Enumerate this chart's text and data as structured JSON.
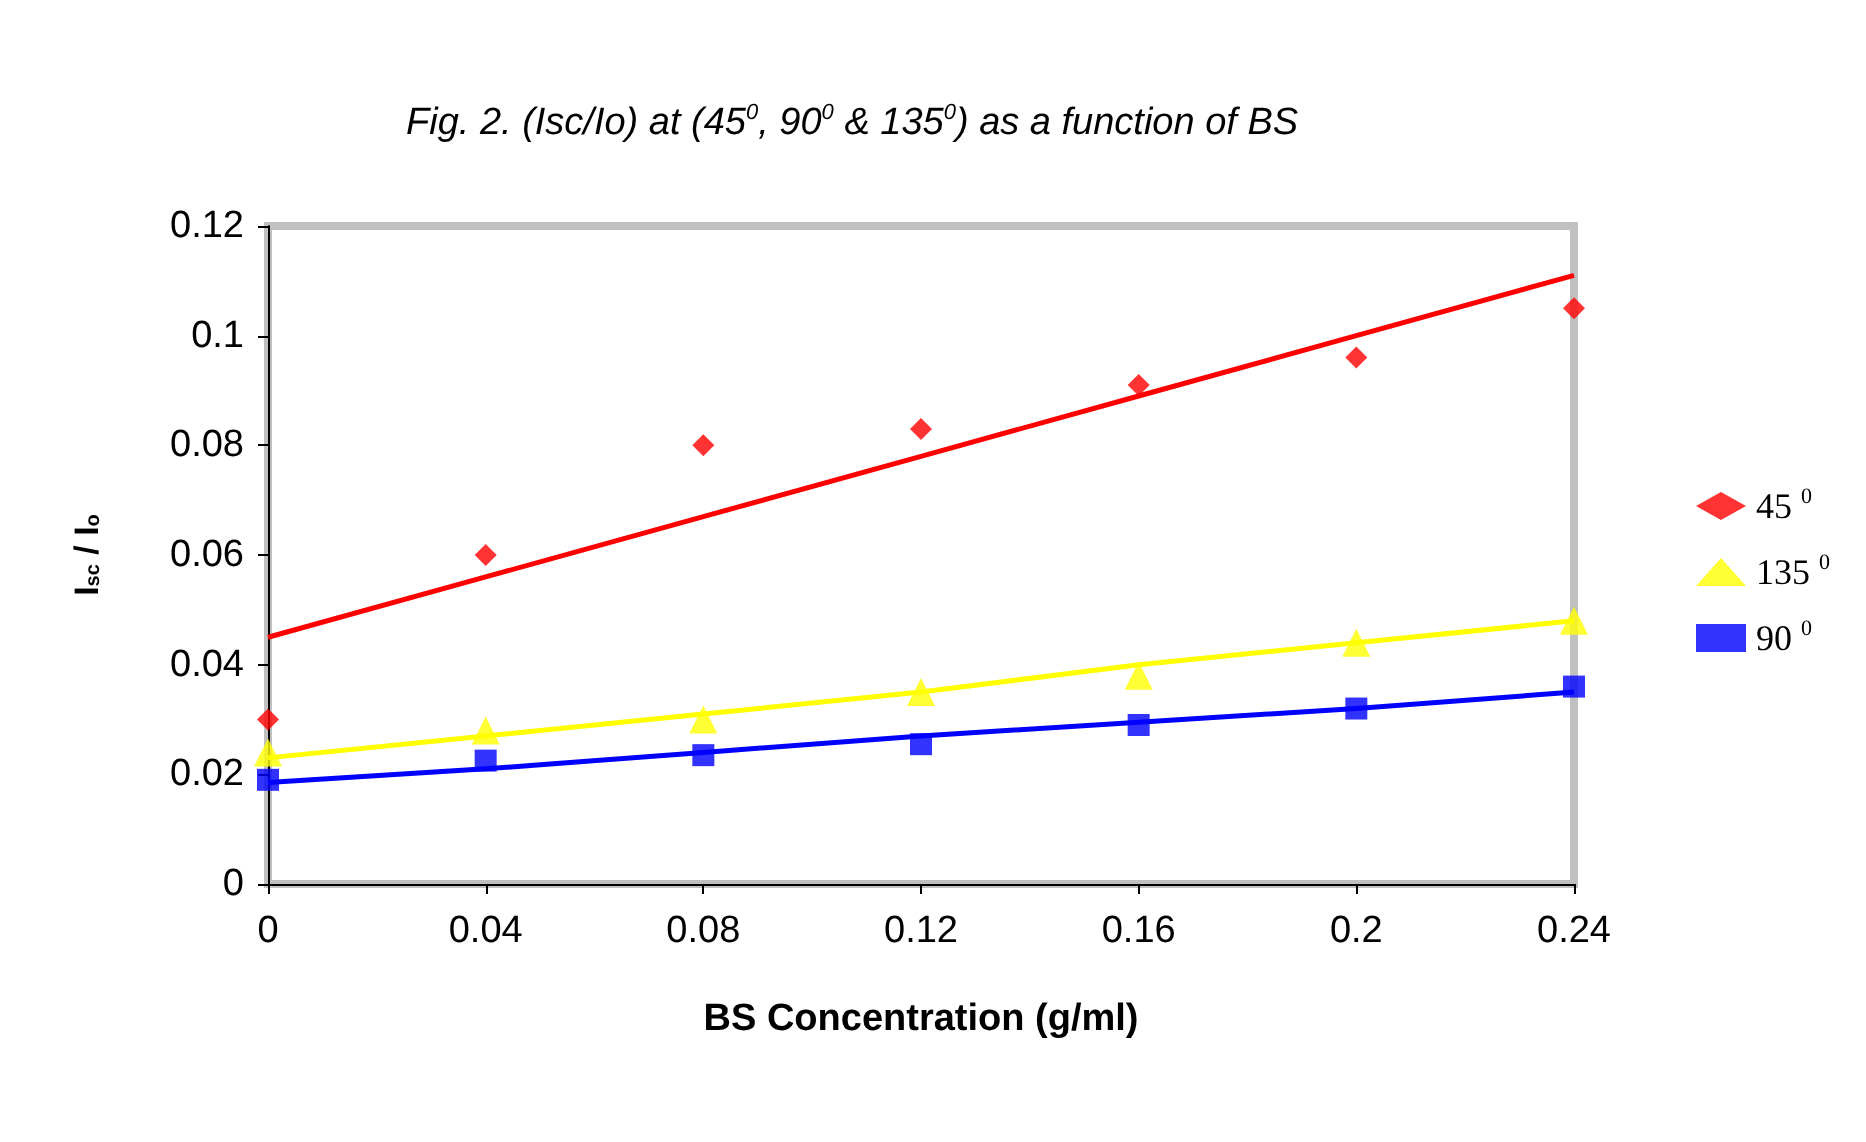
{
  "chart_data": {
    "type": "scatter",
    "title": "Fig. 2. (Isc/Io) at (45$^{0}$, 90$^{0}$ & 135$^{0}$) as a function of BS",
    "xlabel": "BS Concentration (g/ml)",
    "ylabel": "I$_{sc}$ / I$_{o}$",
    "x": [
      0,
      0.04,
      0.08,
      0.12,
      0.16,
      0.2,
      0.24
    ],
    "series": [
      {
        "name": "45 $^{0}$",
        "color": "#ff0000",
        "marker": "diamond",
        "values": [
          0.03,
          0.06,
          0.08,
          0.083,
          0.091,
          0.096,
          0.105
        ]
      },
      {
        "name": "135 $^{0}$",
        "color": "#ffff00",
        "marker": "triangle",
        "values": [
          0.024,
          0.028,
          0.03,
          0.035,
          0.038,
          0.044,
          0.048
        ]
      },
      {
        "name": "90 $^{0}$",
        "color": "#0000ff",
        "marker": "square",
        "values": [
          0.019,
          0.0225,
          0.0235,
          0.0255,
          0.029,
          0.032,
          0.036
        ]
      },
      {
        "type": "line",
        "color": "#ff0000",
        "marker": "none",
        "values": [
          0.045,
          0.056,
          0.067,
          0.078,
          0.089,
          0.1,
          0.111
        ]
      },
      {
        "type": "line",
        "color": "#ffff00",
        "marker": "none",
        "values": [
          0.023,
          0.027,
          0.031,
          0.035,
          0.04,
          0.044,
          0.048
        ]
      },
      {
        "type": "line",
        "color": "#0000ff",
        "marker": "none",
        "values": [
          0.0185,
          0.021,
          0.024,
          0.027,
          0.0295,
          0.032,
          0.035
        ]
      }
    ],
    "xlim": [
      0,
      0.24
    ],
    "xticks": [
      0,
      0.04,
      0.08,
      0.12,
      0.16,
      0.2,
      0.24
    ],
    "ylim": [
      0,
      0.12
    ],
    "yticks": [
      0,
      0.02,
      0.04,
      0.06,
      0.08,
      0.1,
      0.12
    ],
    "grid": false,
    "legend": "right"
  }
}
